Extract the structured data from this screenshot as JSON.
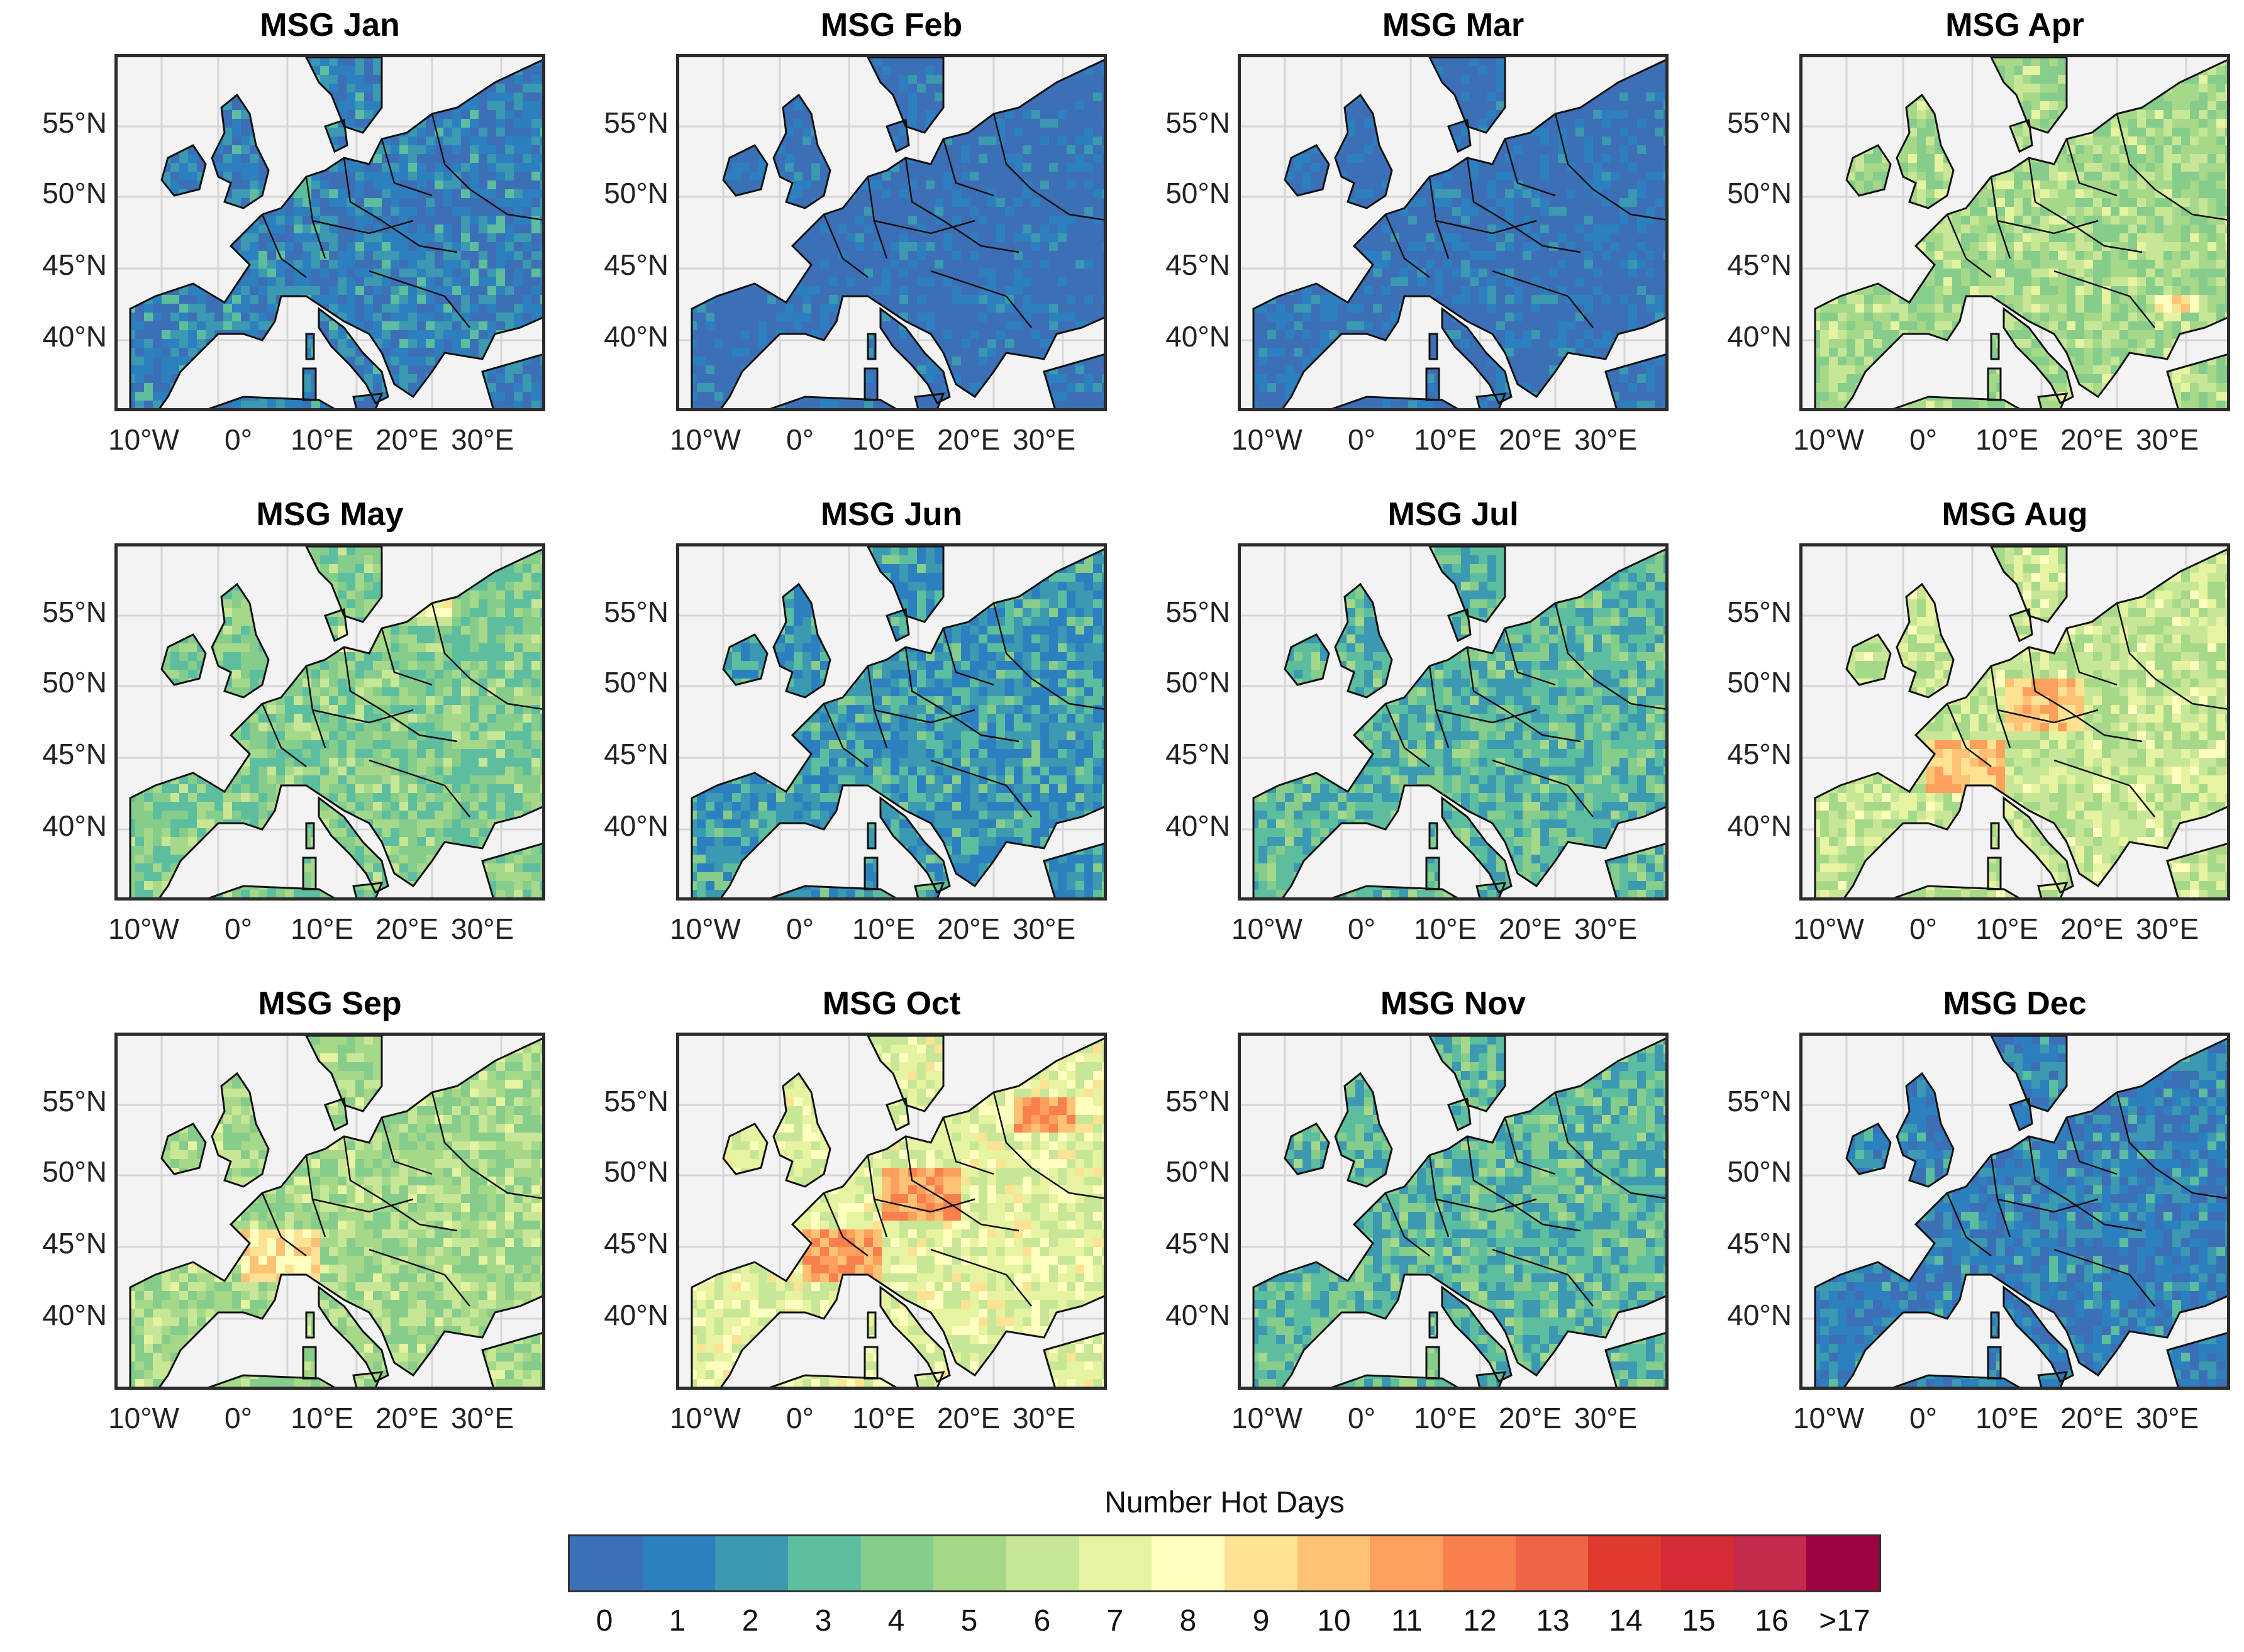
{
  "panels": [
    {
      "title": "MSG Jan",
      "base": 1,
      "hot": []
    },
    {
      "title": "MSG Feb",
      "base": 0,
      "hot": []
    },
    {
      "title": "MSG Mar",
      "base": 0,
      "hot": []
    },
    {
      "title": "MSG Apr",
      "base": 5,
      "hot": [
        "balkans"
      ]
    },
    {
      "title": "MSG May",
      "base": 4,
      "hot": [
        "denmark",
        "north"
      ]
    },
    {
      "title": "MSG Jun",
      "base": 2,
      "hot": []
    },
    {
      "title": "MSG Jul",
      "base": 3,
      "hot": []
    },
    {
      "title": "MSG Aug",
      "base": 6,
      "hot": [
        "france",
        "germany"
      ]
    },
    {
      "title": "MSG Sep",
      "base": 5,
      "hot": [
        "france"
      ]
    },
    {
      "title": "MSG Oct",
      "base": 7,
      "hot": [
        "france",
        "germany",
        "baltic"
      ]
    },
    {
      "title": "MSG Nov",
      "base": 3,
      "hot": []
    },
    {
      "title": "MSG Dec",
      "base": 1,
      "hot": []
    }
  ],
  "axes": {
    "y_ticks": [
      "55°N",
      "50°N",
      "45°N",
      "40°N"
    ],
    "x_ticks": [
      "10°W",
      "0°",
      "10°E",
      "20°E",
      "30°E"
    ]
  },
  "colorbar": {
    "title": "Number Hot Days",
    "labels": [
      "0",
      "1",
      "2",
      "3",
      "4",
      "5",
      "6",
      "7",
      "8",
      "9",
      "10",
      "11",
      "12",
      "13",
      "14",
      "15",
      "16",
      ">17"
    ],
    "colors": [
      "#3c6fb6",
      "#2d80bf",
      "#3b99b1",
      "#5dbd9f",
      "#86cc8b",
      "#a6d88a",
      "#c8e796",
      "#e6f3a0",
      "#fefebe",
      "#fde294",
      "#fdc274",
      "#fca05c",
      "#f8804e",
      "#ef6444",
      "#e03a2f",
      "#d42b34",
      "#c42a4b",
      "#9e0142"
    ]
  },
  "map_colors": {
    "sea": "#f3f3f3",
    "border": "#111111"
  }
}
